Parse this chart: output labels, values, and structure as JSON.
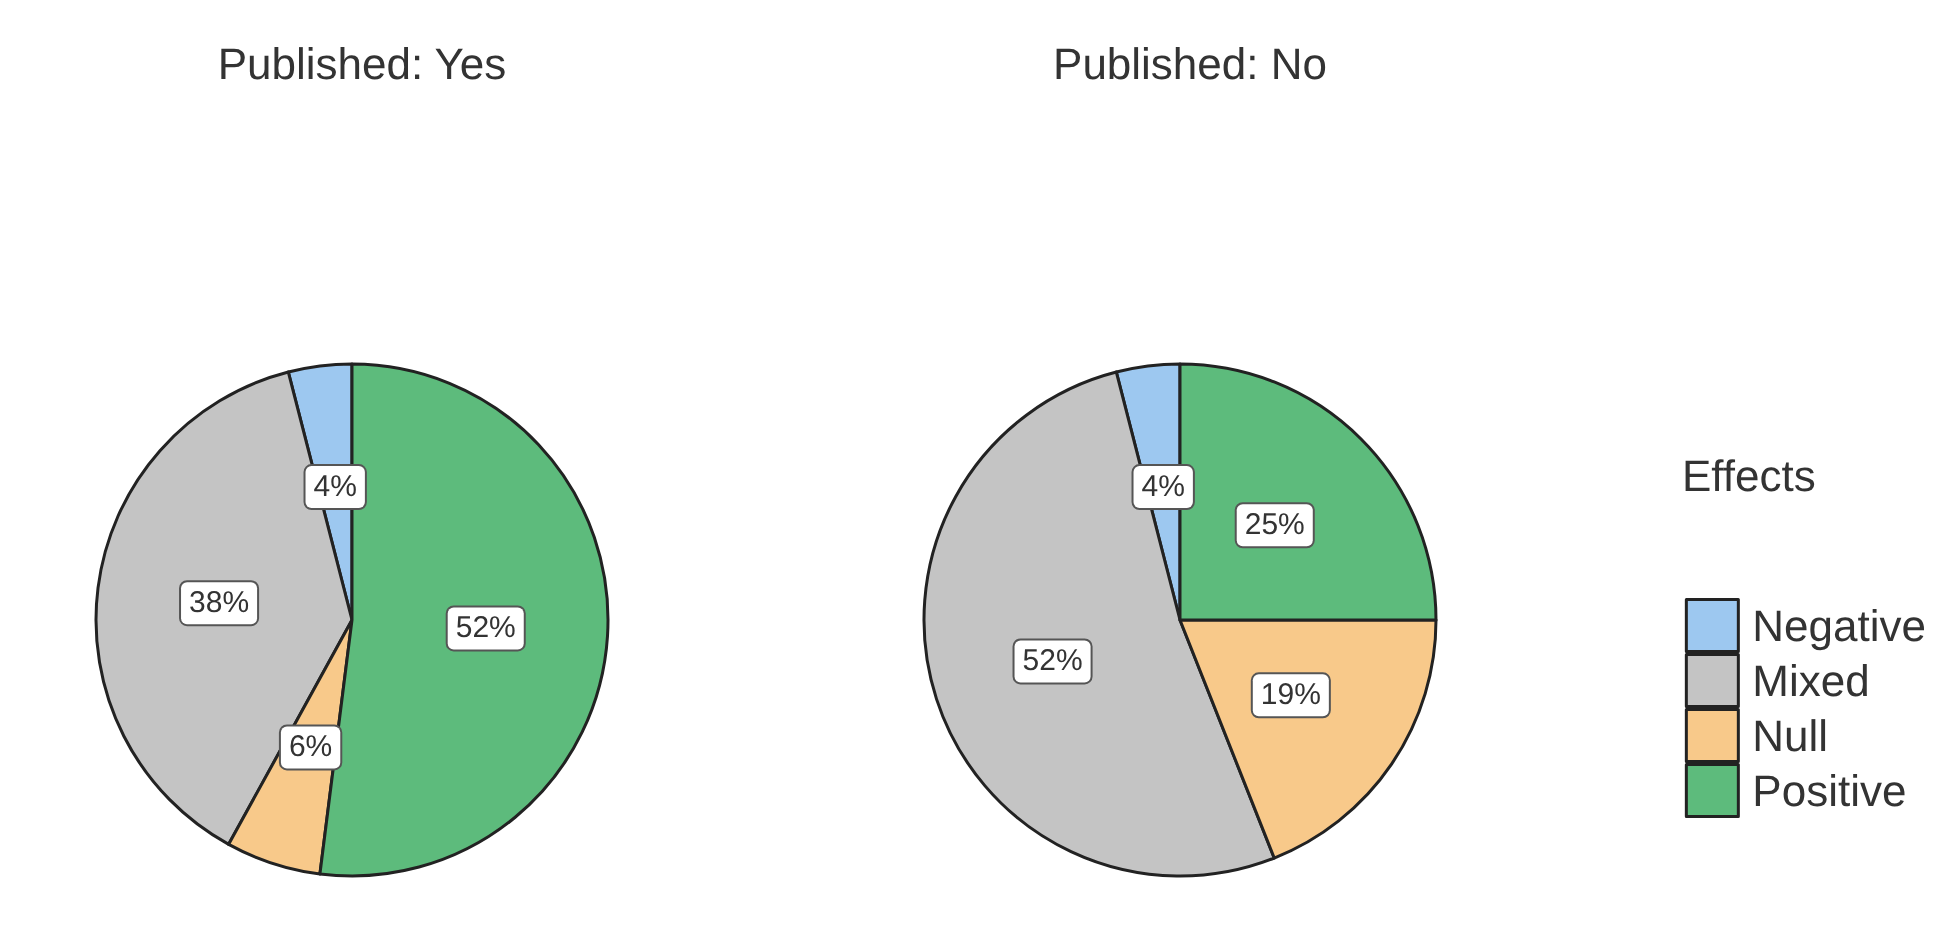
{
  "chart_data": {
    "type": "pie",
    "categories": [
      "Negative",
      "Mixed",
      "Null",
      "Positive"
    ],
    "colors": [
      "#9dc8f0",
      "#c4c4c4",
      "#f8c98a",
      "#5dbb7c"
    ],
    "legend": "right",
    "legend_title": "Effects",
    "series": [
      {
        "name": "Published: Yes",
        "values": [
          4,
          38,
          6,
          52
        ],
        "value_labels": [
          "4%",
          "38%",
          "6%",
          "52%"
        ]
      },
      {
        "name": "Published: No",
        "values": [
          4,
          52,
          19,
          25
        ],
        "value_labels": [
          "4%",
          "52%",
          "19%",
          "25%"
        ]
      }
    ]
  }
}
